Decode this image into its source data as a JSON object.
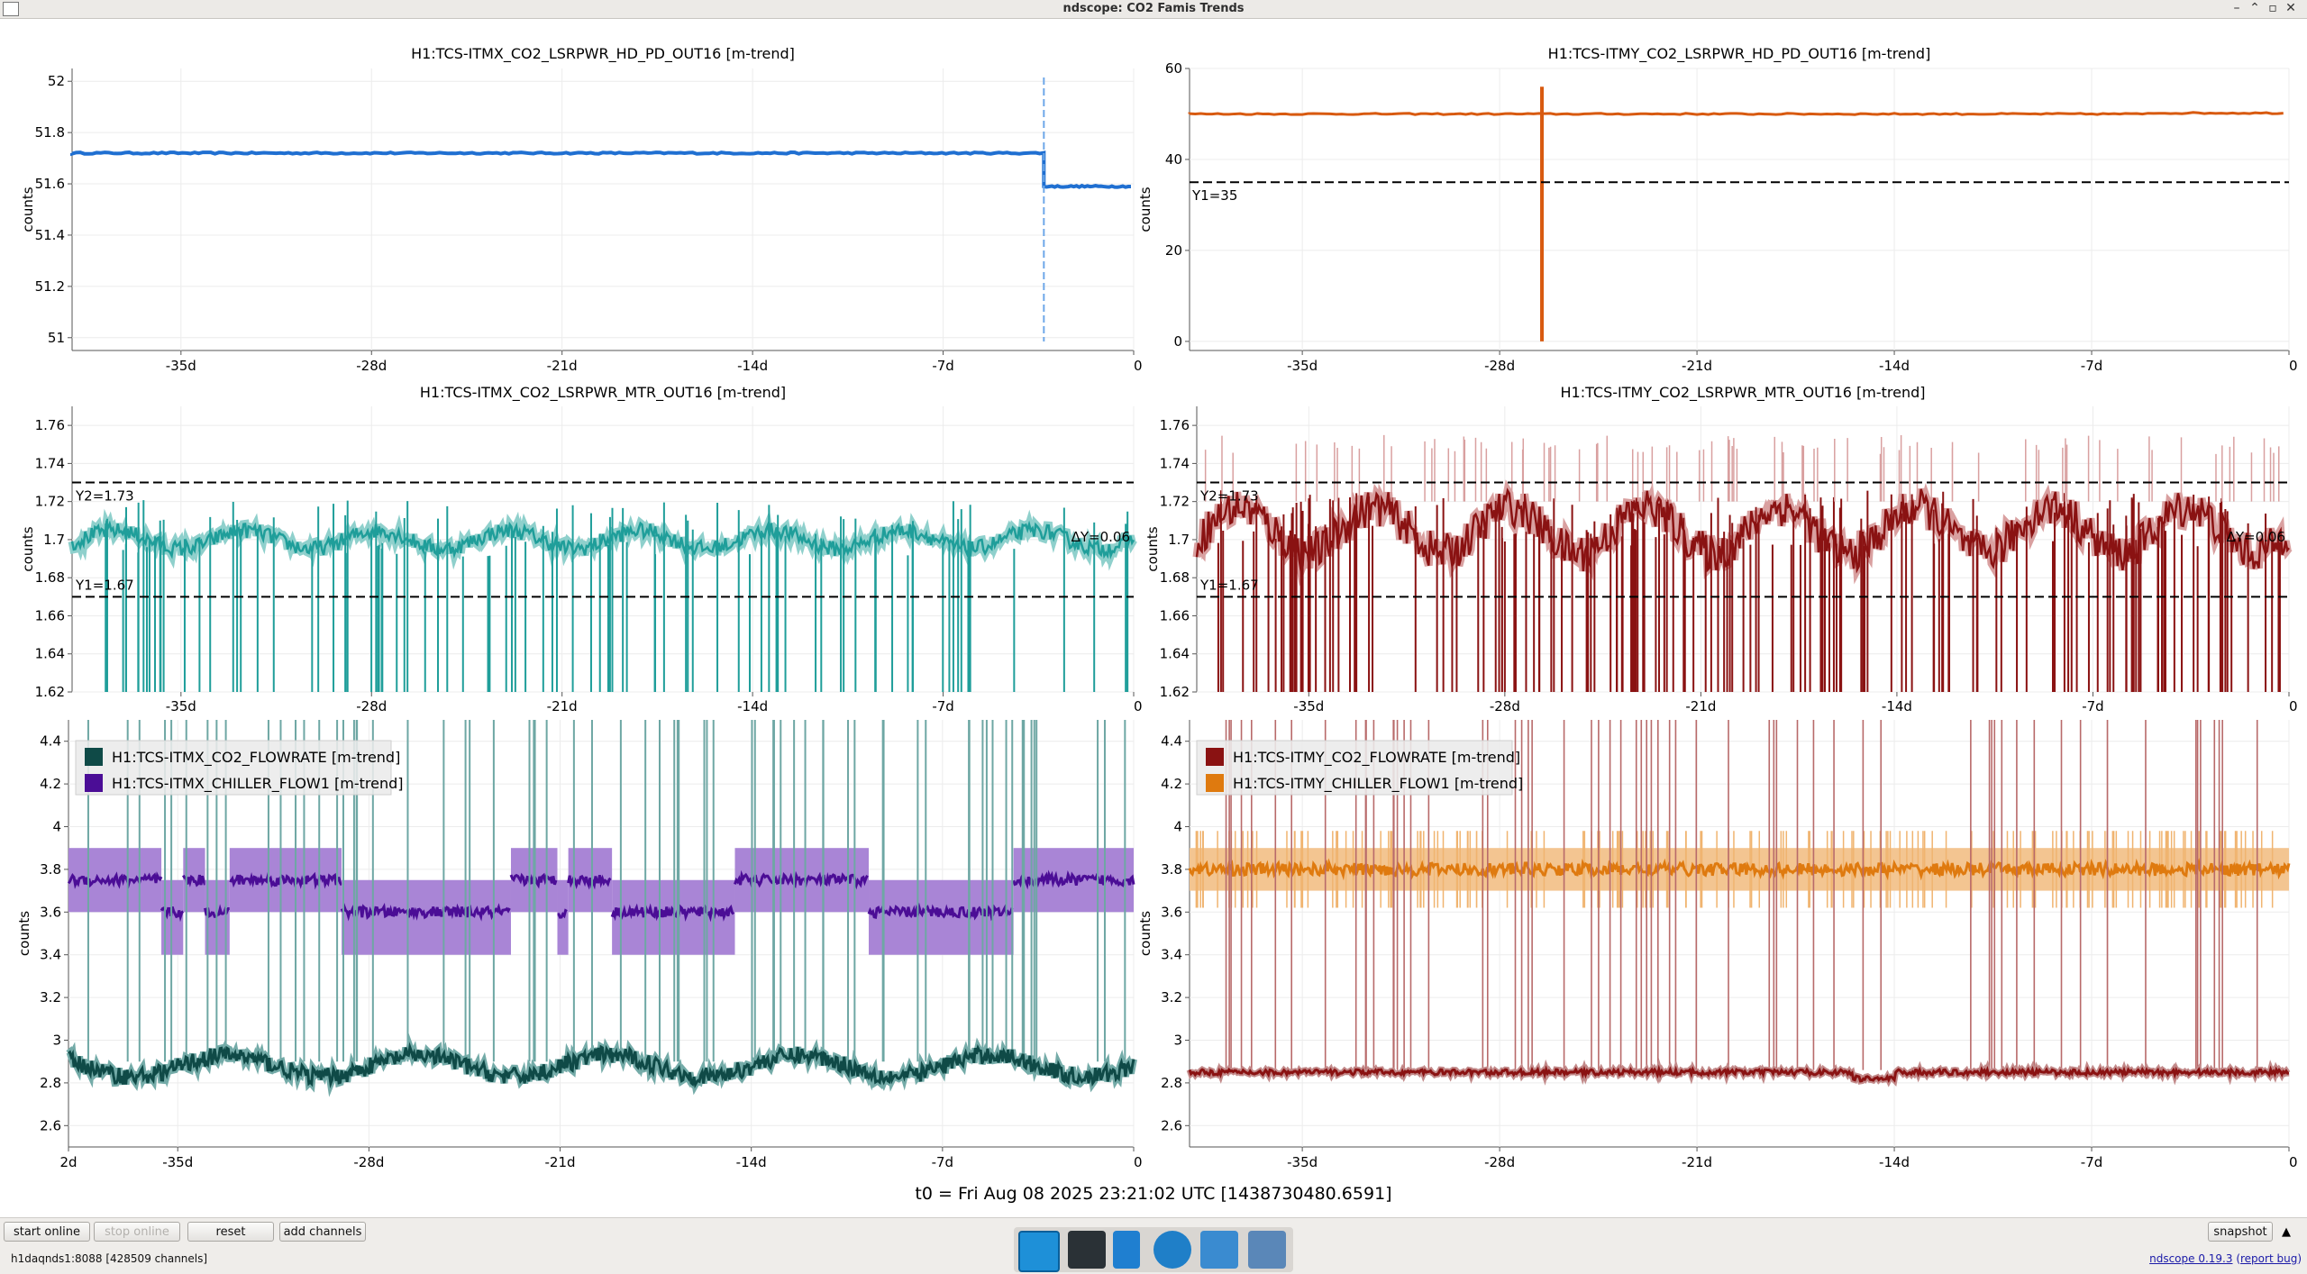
{
  "window": {
    "title": "ndscope: CO2 Famis Trends"
  },
  "plots": [
    {
      "id": "p1",
      "title": "H1:TCS-ITMX_CO2_LSRPWR_HD_PD_OUT16 [m-trend]",
      "ylabel": "counts",
      "yticks": [
        "52",
        "51.8",
        "51.6",
        "51.4",
        "51.2",
        "51"
      ],
      "xticks": [
        "-35d",
        "-28d",
        "-21d",
        "-14d",
        "-7d",
        "0"
      ]
    },
    {
      "id": "p2",
      "title": "H1:TCS-ITMY_CO2_LSRPWR_HD_PD_OUT16 [m-trend]",
      "ylabel": "counts",
      "yticks": [
        "60",
        "40",
        "20",
        "0"
      ],
      "xticks": [
        "-35d",
        "-28d",
        "-21d",
        "-14d",
        "-7d",
        "0"
      ],
      "cursor_y1": "Y1=35"
    },
    {
      "id": "p3",
      "title": "H1:TCS-ITMX_CO2_LSRPWR_MTR_OUT16 [m-trend]",
      "ylabel": "counts",
      "yticks": [
        "1.76",
        "1.74",
        "1.72",
        "1.7",
        "1.68",
        "1.66",
        "1.64",
        "1.62"
      ],
      "xticks": [
        "-35d",
        "-28d",
        "-21d",
        "-14d",
        "-7d",
        "0"
      ],
      "cursor_y1": "Y1=1.67",
      "cursor_y2": "Y2=1.73",
      "cursor_dy": "ΔY=0.06"
    },
    {
      "id": "p4",
      "title": "H1:TCS-ITMY_CO2_LSRPWR_MTR_OUT16 [m-trend]",
      "ylabel": "counts",
      "yticks": [
        "1.76",
        "1.74",
        "1.72",
        "1.7",
        "1.68",
        "1.66",
        "1.64",
        "1.62"
      ],
      "xticks": [
        "-35d",
        "-28d",
        "-21d",
        "-14d",
        "-7d",
        "0"
      ],
      "cursor_y1": "Y1=1.67",
      "cursor_y2": "Y2=1.73",
      "cursor_dy": "ΔY=0.06"
    },
    {
      "id": "p5",
      "title": "",
      "ylabel": "counts",
      "yticks": [
        "4.4",
        "4.2",
        "4",
        "3.8",
        "3.6",
        "3.4",
        "3.2",
        "3",
        "2.8",
        "2.6"
      ],
      "xticks": [
        "2d",
        "-35d",
        "-28d",
        "-21d",
        "-14d",
        "-7d",
        "0"
      ],
      "legend": [
        {
          "label": "H1:TCS-ITMX_CO2_FLOWRATE [m-trend]",
          "color": "#0f4a47"
        },
        {
          "label": "H1:TCS-ITMX_CHILLER_FLOW1 [m-trend]",
          "color": "#4b0d96"
        }
      ]
    },
    {
      "id": "p6",
      "title": "",
      "ylabel": "counts",
      "yticks": [
        "4.4",
        "4.2",
        "4",
        "3.8",
        "3.6",
        "3.4",
        "3.2",
        "3",
        "2.8",
        "2.6"
      ],
      "xticks": [
        "-35d",
        "-28d",
        "-21d",
        "-14d",
        "-7d",
        "0"
      ],
      "legend": [
        {
          "label": "H1:TCS-ITMY_CO2_FLOWRATE [m-trend]",
          "color": "#8a1212"
        },
        {
          "label": "H1:TCS-ITMY_CHILLER_FLOW1 [m-trend]",
          "color": "#df7a0f"
        }
      ]
    }
  ],
  "chart_data": [
    {
      "type": "line",
      "title": "H1:TCS-ITMX_CO2_LSRPWR_HD_PD_OUT16 [m-trend]",
      "ylabel": "counts",
      "xlim": [
        -39,
        0
      ],
      "ylim": [
        50.95,
        52.05
      ],
      "color": "#1f6fd1",
      "series": [
        {
          "name": "H1:TCS-ITMX_CO2_LSRPWR_HD_PD_OUT16 [m-trend]",
          "x": [
            -39,
            -3.3,
            -3.3,
            0
          ],
          "y": [
            51.72,
            51.72,
            51.59,
            51.59
          ]
        }
      ]
    },
    {
      "type": "line",
      "title": "H1:TCS-ITMY_CO2_LSRPWR_HD_PD_OUT16 [m-trend]",
      "ylabel": "counts",
      "xlim": [
        -39,
        0
      ],
      "ylim": [
        -2,
        60
      ],
      "color": "#d85a10",
      "cursor_y1": 35,
      "series": [
        {
          "name": "H1:TCS-ITMY_CO2_LSRPWR_HD_PD_OUT16 [m-trend]",
          "x": [
            -39,
            -26.5,
            -26.5,
            -26.5,
            -5,
            0
          ],
          "y": [
            50,
            50,
            0,
            50,
            50,
            50.2
          ]
        }
      ]
    },
    {
      "type": "line",
      "title": "H1:TCS-ITMX_CO2_LSRPWR_MTR_OUT16 [m-trend]",
      "ylabel": "counts",
      "xlim": [
        -39,
        0
      ],
      "ylim": [
        1.62,
        1.77
      ],
      "color": "#1f9e9a",
      "cursor_y1": 1.67,
      "cursor_y2": 1.73,
      "series": [
        {
          "name": "H1:TCS-ITMX_CO2_LSRPWR_MTR_OUT16 [m-trend]",
          "baseline": 1.7
        }
      ]
    },
    {
      "type": "line",
      "title": "H1:TCS-ITMY_CO2_LSRPWR_MTR_OUT16 [m-trend]",
      "ylabel": "counts",
      "xlim": [
        -39,
        0
      ],
      "ylim": [
        1.62,
        1.77
      ],
      "color": "#8a1212",
      "cursor_y1": 1.67,
      "cursor_y2": 1.73,
      "series": [
        {
          "name": "H1:TCS-ITMY_CO2_LSRPWR_MTR_OUT16 [m-trend]",
          "baseline": 1.705
        }
      ]
    },
    {
      "type": "line",
      "ylabel": "counts",
      "xlim": [
        -39,
        0
      ],
      "ylim": [
        2.5,
        4.5
      ],
      "series": [
        {
          "name": "H1:TCS-ITMX_CO2_FLOWRATE [m-trend]",
          "color": "#0f4a47",
          "baseline": 2.88
        },
        {
          "name": "H1:TCS-ITMX_CHILLER_FLOW1 [m-trend]",
          "color": "#4b0d96",
          "levels": [
            [
              -39,
              -35.6,
              3.75
            ],
            [
              -35.6,
              -34.8,
              3.6
            ],
            [
              -34.8,
              -34.0,
              3.75
            ],
            [
              -34.0,
              -33.1,
              3.6
            ],
            [
              -33.1,
              -29,
              3.75
            ],
            [
              -29,
              -22.8,
              3.6
            ],
            [
              -22.8,
              -21.1,
              3.75
            ],
            [
              -21.1,
              -20.7,
              3.6
            ],
            [
              -20.7,
              -19.1,
              3.75
            ],
            [
              -19.1,
              -14.6,
              3.6
            ],
            [
              -14.6,
              -9.7,
              3.75
            ],
            [
              -9.7,
              -4.4,
              3.6
            ],
            [
              -4.4,
              0,
              3.75
            ]
          ]
        }
      ]
    },
    {
      "type": "line",
      "ylabel": "counts",
      "xlim": [
        -39,
        0
      ],
      "ylim": [
        2.5,
        4.5
      ],
      "series": [
        {
          "name": "H1:TCS-ITMY_CO2_FLOWRATE [m-trend]",
          "color": "#8a1212",
          "baseline": 2.85
        },
        {
          "name": "H1:TCS-ITMY_CHILLER_FLOW1 [m-trend]",
          "color": "#df7a0f",
          "baseline": 3.8
        }
      ]
    }
  ],
  "footer": {
    "t0": "t0 = Fri Aug 08 2025 23:21:02 UTC [1438730480.6591]"
  },
  "toolbar": {
    "start_online": "start online",
    "stop_online": "stop online",
    "reset": "reset",
    "add_channels": "add channels",
    "snapshot": "snapshot"
  },
  "status": {
    "server": "h1daqnds1:8088  [428509 channels]",
    "version": "ndscope 0.19.3",
    "report_bug": "report bug"
  }
}
